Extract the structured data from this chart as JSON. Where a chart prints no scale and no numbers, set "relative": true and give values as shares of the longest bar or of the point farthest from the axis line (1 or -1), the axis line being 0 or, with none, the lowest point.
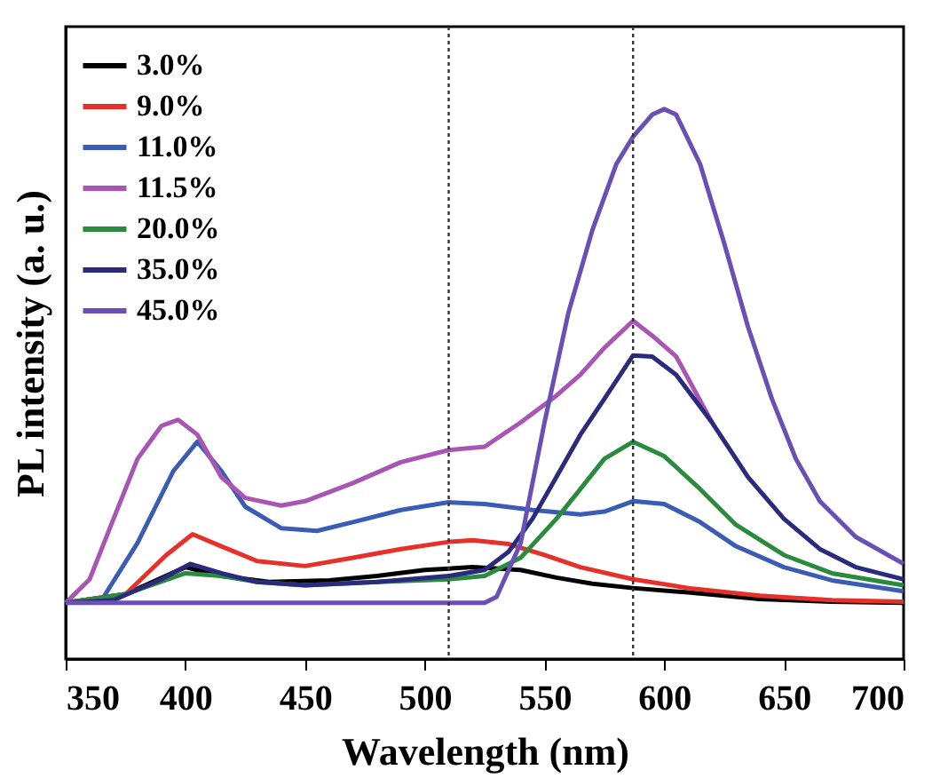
{
  "chart_data": {
    "type": "line",
    "xlabel": "Wavelength (nm)",
    "ylabel": "PL intensity (a. u.)",
    "relative": true,
    "xlim": [
      350,
      700
    ],
    "xticks": [
      350,
      400,
      450,
      500,
      550,
      600,
      650,
      700
    ],
    "legend": "top left",
    "line_style": "solid",
    "marker": "none",
    "ref_lines": [
      {
        "axis": "x",
        "value": 510,
        "label": null,
        "color": "#333333",
        "line_style": "dotted"
      },
      {
        "axis": "x",
        "value": 587,
        "label": null,
        "color": "#333333",
        "line_style": "dotted"
      }
    ],
    "series": [
      {
        "name": "3.0%",
        "color": "#000000",
        "x": [
          350,
          375,
          400,
          415,
          435,
          460,
          480,
          500,
          520,
          540,
          555,
          570,
          587,
          610,
          640,
          670,
          700
        ],
        "values": [
          0.102,
          0.118,
          0.167,
          0.151,
          0.14,
          0.143,
          0.151,
          0.162,
          0.167,
          0.162,
          0.148,
          0.137,
          0.129,
          0.121,
          0.109,
          0.104,
          0.102
        ]
      },
      {
        "name": "9.0%",
        "color": "#e8302a",
        "x": [
          350,
          375,
          392,
          403,
          415,
          430,
          450,
          470,
          490,
          510,
          520,
          535,
          550,
          565,
          587,
          610,
          640,
          670,
          700
        ],
        "values": [
          0.102,
          0.118,
          0.189,
          0.227,
          0.205,
          0.178,
          0.169,
          0.184,
          0.2,
          0.213,
          0.216,
          0.209,
          0.189,
          0.167,
          0.145,
          0.129,
          0.115,
          0.107,
          0.104
        ]
      },
      {
        "name": "11.0%",
        "color": "#3a5cb4",
        "x": [
          350,
          365,
          380,
          395,
          405,
          415,
          425,
          440,
          455,
          470,
          490,
          510,
          525,
          545,
          565,
          575,
          587,
          600,
          615,
          630,
          650,
          670,
          700
        ],
        "values": [
          0.102,
          0.107,
          0.211,
          0.342,
          0.395,
          0.342,
          0.277,
          0.238,
          0.233,
          0.249,
          0.271,
          0.285,
          0.282,
          0.271,
          0.263,
          0.268,
          0.287,
          0.282,
          0.249,
          0.205,
          0.167,
          0.143,
          0.123
        ]
      },
      {
        "name": "11.5%",
        "color": "#a855b4",
        "x": [
          350,
          360,
          370,
          380,
          390,
          397,
          405,
          415,
          425,
          440,
          450,
          470,
          490,
          510,
          525,
          540,
          555,
          565,
          575,
          587,
          595,
          605,
          620
        ],
        "values": [
          0.102,
          0.145,
          0.255,
          0.364,
          0.424,
          0.435,
          0.408,
          0.331,
          0.293,
          0.279,
          0.287,
          0.32,
          0.358,
          0.38,
          0.386,
          0.43,
          0.479,
          0.517,
          0.566,
          0.615,
          0.588,
          0.55,
          0.43
        ]
      },
      {
        "name": "20.0%",
        "color": "#2a8a3e",
        "x": [
          350,
          375,
          400,
          415,
          430,
          450,
          480,
          510,
          525,
          540,
          555,
          565,
          575,
          587,
          600,
          615,
          630,
          650,
          670,
          700
        ],
        "values": [
          0.102,
          0.118,
          0.156,
          0.151,
          0.14,
          0.134,
          0.14,
          0.145,
          0.151,
          0.184,
          0.255,
          0.309,
          0.364,
          0.395,
          0.369,
          0.309,
          0.244,
          0.189,
          0.156,
          0.134
        ]
      },
      {
        "name": "35.0%",
        "color": "#2a2a7e",
        "x": [
          350,
          370,
          390,
          402,
          415,
          430,
          450,
          480,
          510,
          525,
          535,
          545,
          555,
          565,
          575,
          587,
          595,
          605,
          620,
          635,
          650,
          665,
          680,
          700
        ],
        "values": [
          0.102,
          0.107,
          0.145,
          0.173,
          0.156,
          0.14,
          0.134,
          0.14,
          0.151,
          0.162,
          0.195,
          0.255,
          0.331,
          0.408,
          0.473,
          0.552,
          0.55,
          0.517,
          0.43,
          0.331,
          0.255,
          0.2,
          0.167,
          0.145
        ]
      },
      {
        "name": "45.0%",
        "color": "#6a50b4",
        "x": [
          350,
          525,
          530,
          540,
          550,
          560,
          570,
          580,
          587,
          595,
          600,
          605,
          615,
          625,
          635,
          645,
          655,
          665,
          680,
          700
        ],
        "values": [
          0.102,
          0.102,
          0.113,
          0.21,
          0.43,
          0.63,
          0.78,
          0.9,
          0.95,
          0.99,
          1.0,
          0.99,
          0.9,
          0.757,
          0.604,
          0.473,
          0.364,
          0.287,
          0.222,
          0.173
        ]
      }
    ]
  }
}
